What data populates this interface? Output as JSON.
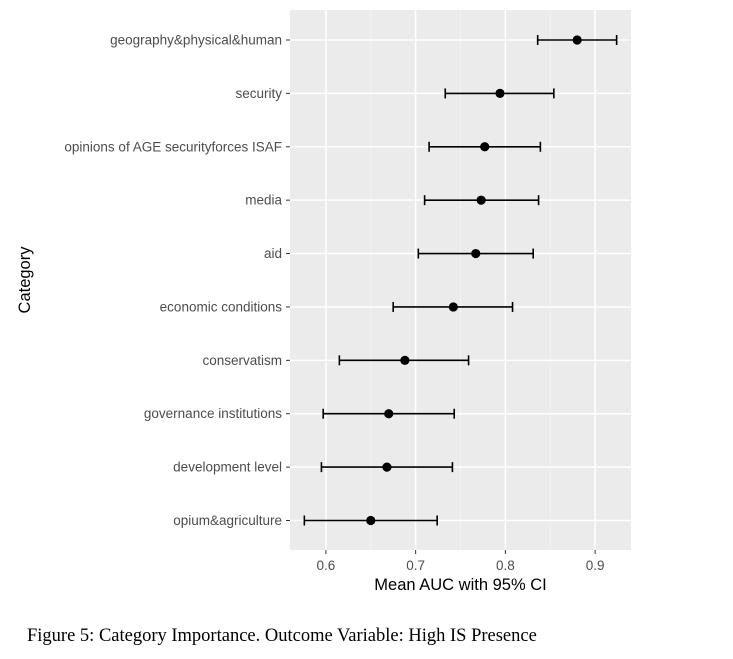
{
  "chart_data": {
    "type": "scatter",
    "xlabel": "Mean AUC with 95% CI",
    "ylabel": "Category",
    "xlim": [
      0.56,
      0.94
    ],
    "x_ticks": [
      0.6,
      0.7,
      0.8,
      0.9
    ],
    "x_tick_labels": [
      "0.6",
      "0.7",
      "0.8",
      "0.9"
    ],
    "grid": true,
    "categories": [
      "geography&physical&human",
      "security",
      "opinions of AGE securityforces ISAF",
      "media",
      "aid",
      "economic conditions",
      "conservatism",
      "governance institutions",
      "development level",
      "opium&agriculture"
    ],
    "series": [
      {
        "mean": [
          0.88,
          0.794,
          0.777,
          0.773,
          0.767,
          0.742,
          0.688,
          0.67,
          0.668,
          0.65
        ],
        "ci_low": [
          0.836,
          0.733,
          0.715,
          0.71,
          0.703,
          0.675,
          0.615,
          0.597,
          0.595,
          0.576
        ],
        "ci_high": [
          0.924,
          0.854,
          0.839,
          0.837,
          0.831,
          0.808,
          0.759,
          0.743,
          0.741,
          0.724
        ]
      }
    ],
    "colors": {
      "panel_bg": "#ebebeb",
      "grid_major": "#ffffff",
      "grid_minor": "#f5f5f5",
      "point": "#000000",
      "tick_text": "#4d4d4d"
    }
  },
  "caption": "Figure 5: Category Importance. Outcome Variable: High IS Presence"
}
